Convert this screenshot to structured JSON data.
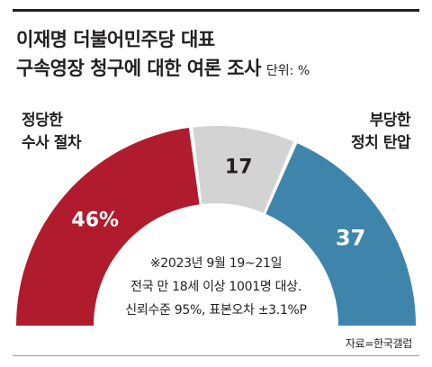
{
  "title_line1": "이재명 더불어민주당 대표",
  "title_line2": "구속영장 청구에 대한 여론 조사",
  "unit": "단위: %",
  "left_label": [
    "정당한",
    "수사 절차"
  ],
  "right_label": [
    "부당한",
    "정치 탄압"
  ],
  "note": [
    "※2023년 9월 19~21일",
    "전국 만 18세 이상 1001명 대상.",
    "신뢰수준 95%, 표본오차 ±3.1%P"
  ],
  "source": "자료=한국갤럽",
  "colors": {
    "justified": "#b01c2e",
    "undecided": "#d3d3d3",
    "unjust": "#3f85ab"
  },
  "chart_data": {
    "type": "pie",
    "style": "half-donut",
    "title": "이재명 더불어민주당 대표 구속영장 청구에 대한 여론 조사",
    "unit": "%",
    "series": [
      {
        "name": "정당한 수사 절차",
        "value": 46,
        "label": "46%"
      },
      {
        "name": "",
        "value": 17,
        "label": "17"
      },
      {
        "name": "부당한 정치 탄압",
        "value": 37,
        "label": "37"
      }
    ]
  }
}
